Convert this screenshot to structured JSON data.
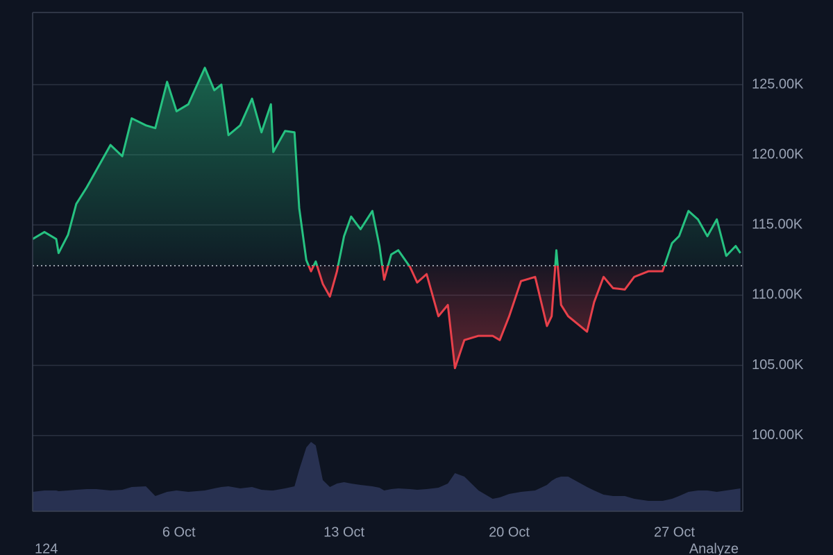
{
  "chart_data": {
    "type": "baseline-area",
    "x": [
      -0.2,
      0.3,
      0.8,
      0.9,
      1.3,
      1.65,
      2.1,
      2.5,
      3.1,
      3.6,
      4.0,
      4.6,
      5.0,
      5.5,
      5.9,
      6.4,
      7.1,
      7.5,
      7.8,
      8.1,
      8.6,
      9.1,
      9.5,
      9.9,
      10.0,
      10.5,
      10.9,
      11.1,
      11.4,
      11.6,
      11.8,
      12.1,
      12.4,
      12.7,
      13.0,
      13.3,
      13.7,
      14.2,
      14.5,
      14.7,
      15.0,
      15.3,
      15.8,
      16.1,
      16.5,
      17.0,
      17.4,
      17.7,
      18.1,
      18.7,
      19.3,
      19.6,
      20.0,
      20.5,
      21.1,
      21.6,
      21.8,
      22.0,
      22.2,
      22.5,
      23.3,
      23.6,
      24.0,
      24.4,
      24.9,
      25.3,
      25.9,
      26.5,
      26.9,
      27.2,
      27.6,
      28.0,
      28.4,
      28.8,
      29.2,
      29.6,
      29.8
    ],
    "values": [
      114000,
      114500,
      114000,
      113000,
      114300,
      116500,
      117700,
      118900,
      120700,
      119900,
      122600,
      122100,
      121900,
      125200,
      123100,
      123600,
      126200,
      124600,
      125000,
      121400,
      122100,
      124000,
      121600,
      123600,
      120200,
      121700,
      121600,
      116200,
      112500,
      111700,
      112400,
      110800,
      109900,
      111700,
      114200,
      115600,
      114700,
      116000,
      113500,
      111100,
      112900,
      113200,
      112000,
      110900,
      111500,
      108500,
      109300,
      104800,
      106800,
      107100,
      107100,
      106800,
      108500,
      111000,
      111300,
      107800,
      108500,
      113200,
      109300,
      108500,
      107400,
      109500,
      111300,
      110500,
      110400,
      111300,
      111700,
      111700,
      113700,
      114200,
      116000,
      115400,
      114200,
      115400,
      112800,
      113500,
      113000
    ],
    "volume": [
      28,
      30,
      30,
      29,
      30,
      31,
      32,
      32,
      30,
      31,
      35,
      36,
      22,
      28,
      30,
      28,
      30,
      33,
      35,
      36,
      33,
      35,
      31,
      30,
      30,
      33,
      36,
      60,
      92,
      100,
      95,
      45,
      35,
      40,
      42,
      40,
      38,
      36,
      34,
      30,
      32,
      33,
      32,
      31,
      32,
      34,
      40,
      55,
      50,
      30,
      18,
      20,
      25,
      28,
      30,
      38,
      44,
      48,
      50,
      50,
      35,
      30,
      24,
      22,
      22,
      18,
      15,
      15,
      18,
      22,
      28,
      30,
      30,
      28,
      30,
      32,
      33
    ],
    "baseline": 112100,
    "up_color": "#26c281",
    "down_color": "#e8404a",
    "volume_color": "#2b3457",
    "xlim": [
      -0.2,
      29.9
    ],
    "xticks": [
      {
        "value": 6,
        "label": "6 Oct"
      },
      {
        "value": 13,
        "label": "13 Oct"
      },
      {
        "value": 20,
        "label": "20 Oct"
      },
      {
        "value": 27,
        "label": "27 Oct"
      }
    ],
    "ylim": [
      94600,
      130140
    ],
    "yticks": [
      {
        "value": 100000,
        "label": "100.00K"
      },
      {
        "value": 105000,
        "label": "105.00K"
      },
      {
        "value": 110000,
        "label": "110.00K"
      },
      {
        "value": 115000,
        "label": "115.00K"
      },
      {
        "value": 120000,
        "label": "120.00K"
      },
      {
        "value": 125000,
        "label": "125.00K"
      }
    ],
    "grid": true
  },
  "footer": {
    "left": "124",
    "right": "Analyze"
  }
}
